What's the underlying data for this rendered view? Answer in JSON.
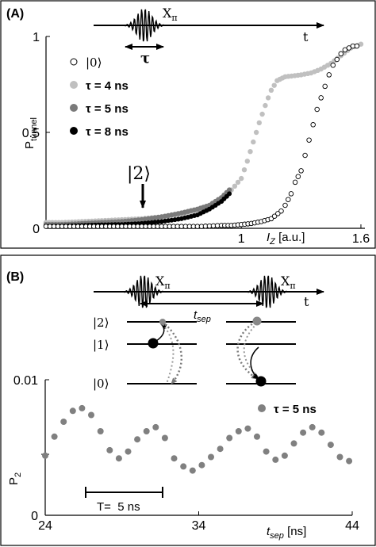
{
  "panels": {
    "a": {
      "label": "(A)",
      "pulse_label": "X",
      "pulse_sub": "π",
      "time_label": "t",
      "tau_label": "τ",
      "ylabel_main": "P",
      "ylabel_sub": "tunnel",
      "xlabel_main": "I",
      "xlabel_sub": "Z",
      "xlabel_unit": " [a.u.]",
      "marker_label": "|2⟩"
    },
    "b": {
      "label": "(B)",
      "pulse1_label": "X",
      "pulse1_sub": "π",
      "pulse2_label": "X",
      "pulse2_sub": "π",
      "time_label": "t",
      "tsep_label": "t",
      "tsep_sub": "sep",
      "levels": [
        "|2⟩",
        "|1⟩",
        "|0⟩"
      ],
      "ylabel_main": "P",
      "ylabel_sub": "2",
      "xlabel_main": "t",
      "xlabel_sub": "sep",
      "xlabel_unit": " [ns]",
      "legend": "τ = 5 ns",
      "period_label": "T=  5 ns"
    }
  },
  "colors": {
    "ket0": "#ffffff",
    "tau4": "#c0c0c0",
    "tau5": "#7a7a7a",
    "tau8": "#000000",
    "b_points": "#808080"
  },
  "chart_data": [
    {
      "type": "scatter",
      "xlim": [
        0.02,
        1.62
      ],
      "ylim": [
        0,
        1.0
      ],
      "xticks": [
        "1",
        "1.6"
      ],
      "yticks": [
        "0",
        "0.5",
        "1"
      ],
      "xlabel": "I_Z [a.u.]",
      "ylabel": "P_tunnel",
      "legend_position": "upper-left",
      "series": [
        {
          "name": "|0⟩",
          "style": "open",
          "points": [
            [
              0.02,
              0.01
            ],
            [
              0.1,
              0.01
            ],
            [
              0.2,
              0.01
            ],
            [
              0.3,
              0.01
            ],
            [
              0.4,
              0.01
            ],
            [
              0.5,
              0.01
            ],
            [
              0.6,
              0.01
            ],
            [
              0.7,
              0.01
            ],
            [
              0.8,
              0.01
            ],
            [
              0.9,
              0.015
            ],
            [
              0.95,
              0.015
            ],
            [
              1.0,
              0.02
            ],
            [
              1.05,
              0.025
            ],
            [
              1.1,
              0.035
            ],
            [
              1.15,
              0.05
            ],
            [
              1.2,
              0.09
            ],
            [
              1.22,
              0.12
            ],
            [
              1.25,
              0.18
            ],
            [
              1.27,
              0.24
            ],
            [
              1.3,
              0.3
            ],
            [
              1.32,
              0.38
            ],
            [
              1.34,
              0.46
            ],
            [
              1.36,
              0.54
            ],
            [
              1.38,
              0.62
            ],
            [
              1.4,
              0.68
            ],
            [
              1.42,
              0.74
            ],
            [
              1.44,
              0.8
            ],
            [
              1.46,
              0.85
            ],
            [
              1.48,
              0.88
            ],
            [
              1.5,
              0.91
            ],
            [
              1.52,
              0.93
            ],
            [
              1.54,
              0.94
            ],
            [
              1.56,
              0.95
            ],
            [
              1.58,
              0.95
            ]
          ]
        },
        {
          "name": "τ = 4 ns",
          "style": "filled",
          "points": [
            [
              0.02,
              0.03
            ],
            [
              0.1,
              0.03
            ],
            [
              0.2,
              0.035
            ],
            [
              0.3,
              0.04
            ],
            [
              0.4,
              0.045
            ],
            [
              0.5,
              0.05
            ],
            [
              0.6,
              0.06
            ],
            [
              0.7,
              0.075
            ],
            [
              0.8,
              0.1
            ],
            [
              0.85,
              0.12
            ],
            [
              0.9,
              0.15
            ],
            [
              0.95,
              0.2
            ],
            [
              1.0,
              0.26
            ],
            [
              1.03,
              0.35
            ],
            [
              1.06,
              0.45
            ],
            [
              1.09,
              0.55
            ],
            [
              1.12,
              0.64
            ],
            [
              1.15,
              0.72
            ],
            [
              1.18,
              0.77
            ],
            [
              1.22,
              0.79
            ],
            [
              1.3,
              0.8
            ],
            [
              1.35,
              0.81
            ],
            [
              1.4,
              0.83
            ],
            [
              1.45,
              0.86
            ],
            [
              1.5,
              0.9
            ],
            [
              1.55,
              0.94
            ],
            [
              1.6,
              0.96
            ]
          ]
        },
        {
          "name": "τ = 5 ns",
          "style": "filled",
          "points": [
            [
              0.02,
              0.02
            ],
            [
              0.1,
              0.02
            ],
            [
              0.2,
              0.025
            ],
            [
              0.3,
              0.03
            ],
            [
              0.4,
              0.035
            ],
            [
              0.5,
              0.045
            ],
            [
              0.6,
              0.06
            ],
            [
              0.7,
              0.08
            ],
            [
              0.78,
              0.1
            ],
            [
              0.84,
              0.12
            ],
            [
              0.9,
              0.16
            ],
            [
              0.94,
              0.2
            ]
          ]
        },
        {
          "name": "τ = 8 ns",
          "style": "filled",
          "points": [
            [
              0.02,
              0.01
            ],
            [
              0.1,
              0.012
            ],
            [
              0.2,
              0.015
            ],
            [
              0.3,
              0.018
            ],
            [
              0.4,
              0.02
            ],
            [
              0.5,
              0.025
            ],
            [
              0.6,
              0.035
            ],
            [
              0.7,
              0.05
            ],
            [
              0.78,
              0.07
            ],
            [
              0.84,
              0.1
            ],
            [
              0.9,
              0.14
            ],
            [
              0.94,
              0.18
            ]
          ]
        }
      ]
    },
    {
      "type": "scatter",
      "xlim": [
        24,
        44
      ],
      "ylim": [
        0,
        0.01
      ],
      "xticks": [
        "24",
        "34",
        "44"
      ],
      "yticks": [
        "0",
        "0.01"
      ],
      "xlabel": "t_sep [ns]",
      "ylabel": "P_2",
      "legend_position": "upper-right",
      "series": [
        {
          "name": "τ = 5 ns",
          "x": [
            24.0,
            24.6,
            25.2,
            25.8,
            26.4,
            27.0,
            27.6,
            28.2,
            28.8,
            29.4,
            30.0,
            30.6,
            31.2,
            31.8,
            32.4,
            33.0,
            33.6,
            34.2,
            34.8,
            35.4,
            36.0,
            36.6,
            37.2,
            37.8,
            38.4,
            39.0,
            39.6,
            40.2,
            40.8,
            41.4,
            42.0,
            42.6,
            43.2,
            43.8
          ],
          "y": [
            0.0044,
            0.0058,
            0.0069,
            0.0077,
            0.0079,
            0.0074,
            0.0062,
            0.0048,
            0.0042,
            0.0047,
            0.0056,
            0.0062,
            0.0065,
            0.0057,
            0.0042,
            0.0036,
            0.0033,
            0.0037,
            0.0043,
            0.0049,
            0.0057,
            0.0062,
            0.0064,
            0.0058,
            0.0047,
            0.0041,
            0.0044,
            0.0053,
            0.0061,
            0.0065,
            0.0061,
            0.0052,
            0.0043,
            0.004
          ]
        }
      ]
    }
  ]
}
